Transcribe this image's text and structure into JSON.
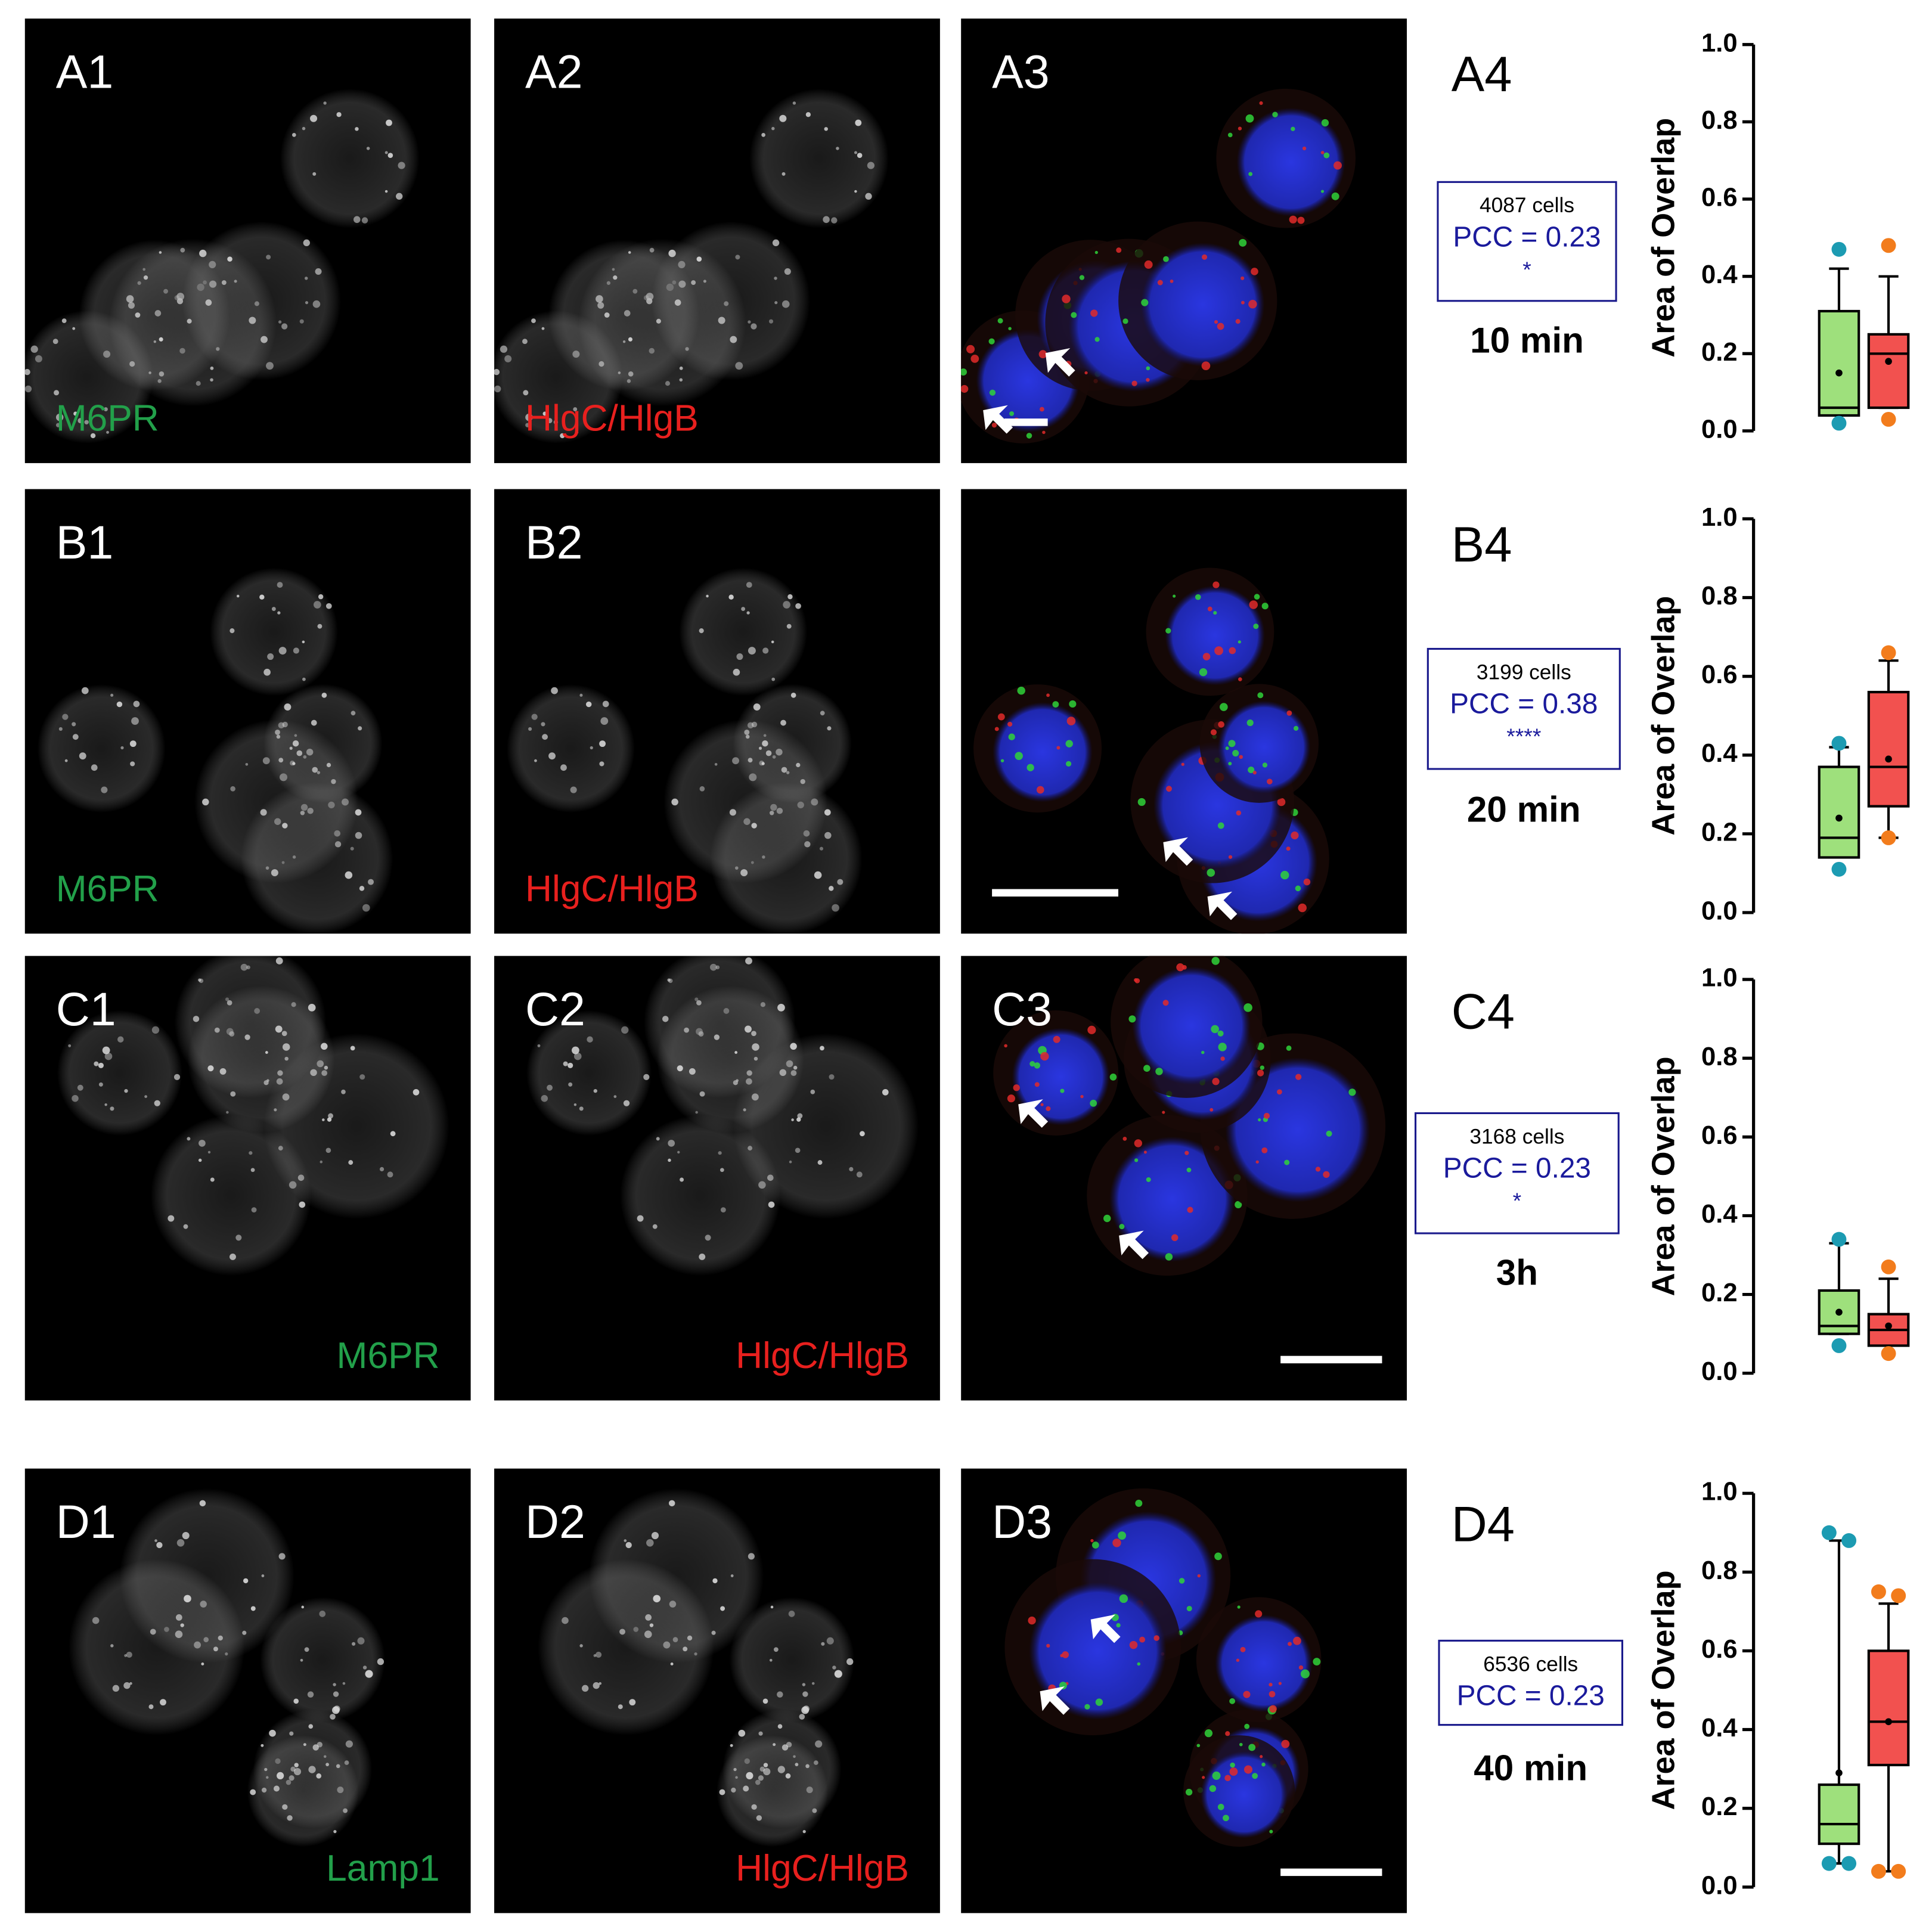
{
  "rows": [
    {
      "images": [
        {
          "label": "A1",
          "channel": "M6PR"
        },
        {
          "label": "A2",
          "channel": "HlgC/HlgB"
        },
        {
          "label": "A3"
        }
      ],
      "panel": "A4",
      "stats": {
        "cells": "4087 cells",
        "pcc": "PCC = 0.23",
        "significance": "*"
      },
      "time": "10 min"
    },
    {
      "images": [
        {
          "label": "B1",
          "channel": "M6PR"
        },
        {
          "label": "B2",
          "channel": "HlgC/HlgB"
        },
        {}
      ],
      "panel": "B4",
      "stats": {
        "cells": "3199 cells",
        "pcc": "PCC = 0.38",
        "significance": "****"
      },
      "time": "20 min"
    },
    {
      "images": [
        {
          "label": "C1",
          "channel": "M6PR"
        },
        {
          "label": "C2",
          "channel": "HlgC/HlgB"
        },
        {
          "label": "C3"
        }
      ],
      "panel": "C4",
      "stats": {
        "cells": "3168 cells",
        "pcc": "PCC = 0.23",
        "significance": "*"
      },
      "time": "3h"
    },
    {
      "images": [
        {
          "label": "D1",
          "channel": "Lamp1"
        },
        {
          "label": "D2",
          "channel": "HlgC/HlgB"
        },
        {
          "label": "D3"
        }
      ],
      "panel": "D4",
      "stats": {
        "cells": "6536 cells",
        "pcc": "PCC = 0.23"
      },
      "time": "40 min"
    }
  ],
  "chart_data": [
    {
      "type": "box",
      "ylabel": "Area of Overlap",
      "ylim": [
        0,
        1
      ],
      "yticks": [
        {
          "value": 0,
          "label": "0.0"
        },
        {
          "value": 0.2,
          "label": "0.2"
        },
        {
          "value": 0.4,
          "label": "0.4"
        },
        {
          "value": 0.6,
          "label": "0.6"
        },
        {
          "value": 0.8,
          "label": "0.8"
        },
        {
          "value": 1,
          "label": "1.0"
        }
      ],
      "boxes": [
        {
          "color": "#9ee07c",
          "point_color": "#1c9bb2",
          "min": 0.04,
          "q1": 0.04,
          "median": 0.06,
          "q3": 0.31,
          "max": 0.42,
          "mean": 0.15,
          "points": [
            0.47,
            0.02
          ]
        },
        {
          "color": "#f2514f",
          "point_color": "#f27c1c",
          "min": 0.06,
          "q1": 0.06,
          "median": 0.2,
          "q3": 0.25,
          "max": 0.4,
          "mean": 0.18,
          "points": [
            0.48,
            0.03
          ]
        }
      ]
    },
    {
      "type": "box",
      "ylabel": "Area of Overlap",
      "ylim": [
        0,
        1
      ],
      "yticks": [
        {
          "value": 0,
          "label": "0.0"
        },
        {
          "value": 0.2,
          "label": "0.2"
        },
        {
          "value": 0.4,
          "label": "0.4"
        },
        {
          "value": 0.6,
          "label": "0.6"
        },
        {
          "value": 0.8,
          "label": "0.8"
        },
        {
          "value": 1,
          "label": "1.0"
        }
      ],
      "boxes": [
        {
          "color": "#9ee07c",
          "point_color": "#1c9bb2",
          "min": 0.14,
          "q1": 0.14,
          "median": 0.19,
          "q3": 0.37,
          "max": 0.42,
          "mean": 0.24,
          "points": [
            0.43,
            0.11
          ]
        },
        {
          "color": "#f2514f",
          "point_color": "#f27c1c",
          "min": 0.19,
          "q1": 0.27,
          "median": 0.37,
          "q3": 0.56,
          "max": 0.64,
          "mean": 0.39,
          "points": [
            0.66,
            0.19
          ]
        }
      ]
    },
    {
      "type": "box",
      "ylabel": "Area of Overlap",
      "ylim": [
        0,
        1
      ],
      "yticks": [
        {
          "value": 0,
          "label": "0.0"
        },
        {
          "value": 0.2,
          "label": "0.2"
        },
        {
          "value": 0.4,
          "label": "0.4"
        },
        {
          "value": 0.6,
          "label": "0.6"
        },
        {
          "value": 0.8,
          "label": "0.8"
        },
        {
          "value": 1,
          "label": "1.0"
        }
      ],
      "boxes": [
        {
          "color": "#9ee07c",
          "point_color": "#1c9bb2",
          "min": 0.1,
          "q1": 0.1,
          "median": 0.12,
          "q3": 0.21,
          "max": 0.33,
          "mean": 0.155,
          "points": [
            0.34,
            0.07
          ]
        },
        {
          "color": "#f2514f",
          "point_color": "#f27c1c",
          "min": 0.07,
          "q1": 0.07,
          "median": 0.11,
          "q3": 0.15,
          "max": 0.24,
          "mean": 0.12,
          "points": [
            0.27,
            0.05
          ]
        }
      ]
    },
    {
      "type": "box",
      "ylabel": "Area of Overlap",
      "ylim": [
        0,
        1
      ],
      "yticks": [
        {
          "value": 0,
          "label": "0.0"
        },
        {
          "value": 0.2,
          "label": "0.2"
        },
        {
          "value": 0.4,
          "label": "0.4"
        },
        {
          "value": 0.6,
          "label": "0.6"
        },
        {
          "value": 0.8,
          "label": "0.8"
        },
        {
          "value": 1,
          "label": "1.0"
        }
      ],
      "boxes": [
        {
          "color": "#9ee07c",
          "point_color": "#1c9bb2",
          "min": 0.06,
          "q1": 0.11,
          "median": 0.16,
          "q3": 0.26,
          "max": 0.88,
          "mean": 0.29,
          "points": [
            0.9,
            0.88,
            0.06,
            0.06
          ]
        },
        {
          "color": "#f2514f",
          "point_color": "#f27c1c",
          "min": 0.04,
          "q1": 0.31,
          "median": 0.42,
          "q3": 0.6,
          "max": 0.72,
          "mean": 0.42,
          "points": [
            0.75,
            0.74,
            0.04,
            0.04
          ]
        }
      ]
    }
  ]
}
